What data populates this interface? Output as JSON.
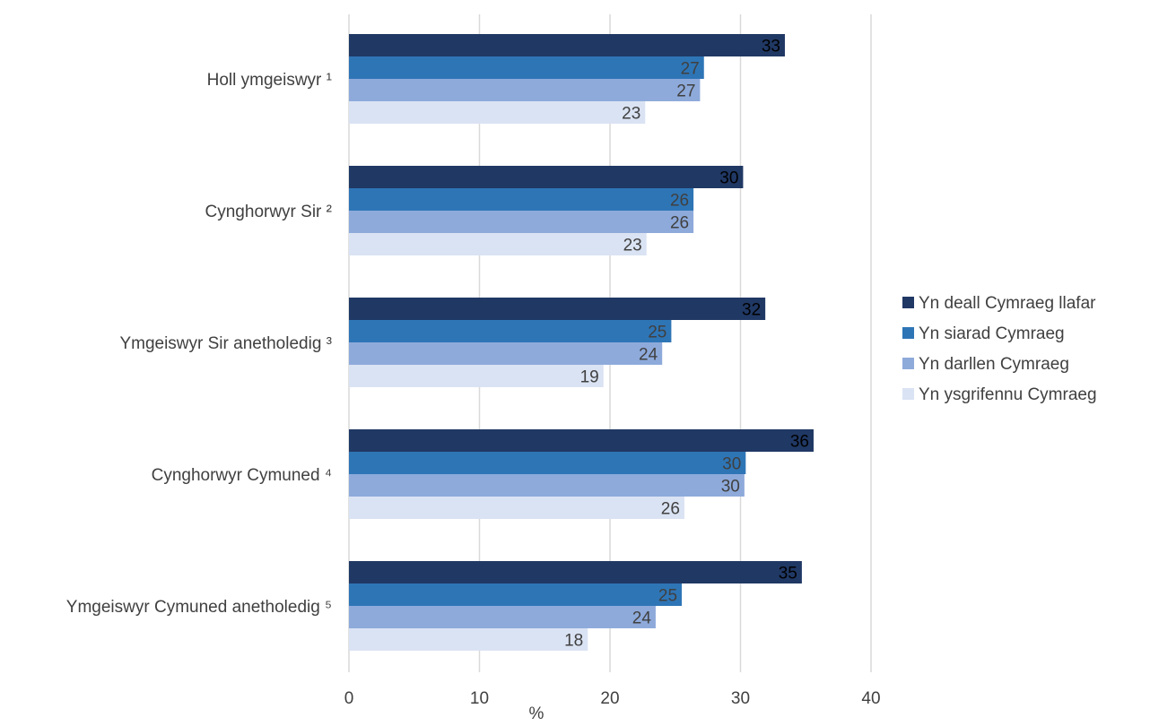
{
  "chart_data": {
    "type": "bar",
    "orientation": "horizontal",
    "categories": [
      "Holl ymgeiswyr ¹",
      "Cynghorwyr Sir ²",
      "Ymgeiswyr Sir anetholedig ³",
      "Cynghorwyr Cymuned  ⁴",
      "Ymgeiswyr Cymuned  anetholedig  ⁵"
    ],
    "series": [
      {
        "name": "Yn deall Cymraeg llafar",
        "color": "#203864",
        "values": [
          33.4,
          30.2,
          31.9,
          35.6,
          34.7
        ],
        "labels": [
          "33",
          "30",
          "32",
          "36",
          "35"
        ]
      },
      {
        "name": "Yn siarad Cymraeg",
        "color": "#2e75b6",
        "values": [
          27.2,
          26.4,
          24.7,
          30.4,
          25.5
        ],
        "labels": [
          "27",
          "26",
          "25",
          "30",
          "25"
        ]
      },
      {
        "name": "Yn darllen Cymraeg",
        "color": "#8eaadb",
        "values": [
          26.9,
          26.4,
          24.0,
          30.3,
          23.5
        ],
        "labels": [
          "27",
          "26",
          "24",
          "30",
          "24"
        ]
      },
      {
        "name": "Yn ysgrifennu Cymraeg",
        "color": "#dae3f3",
        "values": [
          22.7,
          22.8,
          19.5,
          25.7,
          18.3
        ],
        "labels": [
          "23",
          "23",
          "19",
          "26",
          "18"
        ]
      }
    ],
    "xlabel": "%",
    "xlim": [
      0,
      40
    ],
    "xticks": [
      "0",
      "10",
      "20",
      "30",
      "40"
    ],
    "grid": "vertical",
    "legend": "right"
  }
}
